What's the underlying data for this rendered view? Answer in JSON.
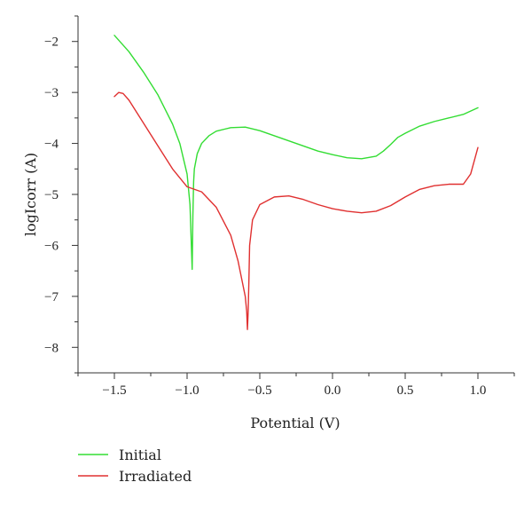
{
  "chart_data": {
    "type": "line",
    "xlabel": "Potential (V)",
    "ylabel": "logIcorr (A)",
    "xlim": [
      -1.75,
      1.25
    ],
    "ylim": [
      -8.5,
      -1.5
    ],
    "xticks": [
      -1.5,
      -1.0,
      -0.5,
      0.0,
      0.5,
      1.0
    ],
    "xtick_labels": [
      "−1.5",
      "−1.0",
      "−0.5",
      "0.0",
      "0.5",
      "1.0"
    ],
    "yticks": [
      -8,
      -7,
      -6,
      -5,
      -4,
      -3,
      -2
    ],
    "ytick_labels": [
      "−8",
      "−7",
      "−6",
      "−5",
      "−4",
      "−3",
      "−2"
    ],
    "grid": false,
    "legend_position": "bottom-left",
    "series": [
      {
        "name": "Initial",
        "color": "#33dd33",
        "x": [
          -1.5,
          -1.4,
          -1.3,
          -1.2,
          -1.1,
          -1.05,
          -1.0,
          -0.98,
          -0.965,
          -0.96,
          -0.955,
          -0.95,
          -0.93,
          -0.9,
          -0.85,
          -0.8,
          -0.7,
          -0.6,
          -0.5,
          -0.4,
          -0.3,
          -0.2,
          -0.1,
          0.0,
          0.1,
          0.2,
          0.3,
          0.35,
          0.4,
          0.45,
          0.5,
          0.6,
          0.7,
          0.8,
          0.9,
          1.0
        ],
        "y": [
          -1.88,
          -2.2,
          -2.6,
          -3.05,
          -3.62,
          -4.0,
          -4.6,
          -5.2,
          -6.47,
          -5.4,
          -4.75,
          -4.5,
          -4.2,
          -4.0,
          -3.85,
          -3.76,
          -3.69,
          -3.68,
          -3.75,
          -3.85,
          -3.95,
          -4.05,
          -4.15,
          -4.22,
          -4.28,
          -4.3,
          -4.25,
          -4.15,
          -4.02,
          -3.88,
          -3.8,
          -3.66,
          -3.57,
          -3.5,
          -3.43,
          -3.3
        ]
      },
      {
        "name": "Irradiated",
        "color": "#e03030",
        "x": [
          -1.5,
          -1.47,
          -1.44,
          -1.4,
          -1.3,
          -1.2,
          -1.1,
          -1.0,
          -0.9,
          -0.8,
          -0.7,
          -0.65,
          -0.6,
          -0.59,
          -0.585,
          -0.58,
          -0.575,
          -0.57,
          -0.55,
          -0.5,
          -0.4,
          -0.3,
          -0.2,
          -0.1,
          0.0,
          0.1,
          0.2,
          0.3,
          0.4,
          0.5,
          0.6,
          0.7,
          0.8,
          0.9,
          0.95,
          1.0
        ],
        "y": [
          -3.08,
          -3.0,
          -3.02,
          -3.15,
          -3.6,
          -4.05,
          -4.5,
          -4.85,
          -4.95,
          -5.25,
          -5.8,
          -6.3,
          -7.0,
          -7.3,
          -7.65,
          -7.3,
          -6.7,
          -6.0,
          -5.5,
          -5.2,
          -5.05,
          -5.03,
          -5.1,
          -5.2,
          -5.28,
          -5.33,
          -5.36,
          -5.33,
          -5.22,
          -5.05,
          -4.9,
          -4.83,
          -4.8,
          -4.8,
          -4.6,
          -4.08
        ]
      }
    ]
  }
}
